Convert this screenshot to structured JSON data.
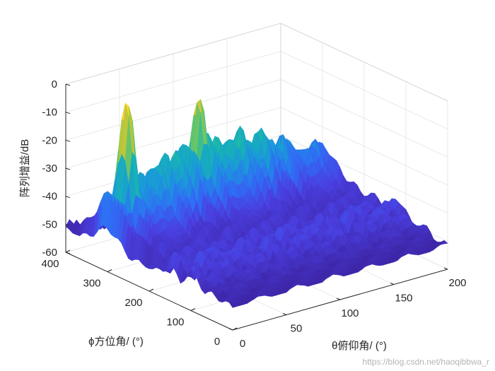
{
  "chart_data": {
    "type": "surface",
    "title": "",
    "xlabel": "θ俯仰角/ (°)",
    "ylabel": "ϕ方位角/ (°)",
    "zlabel": "阵列增益/dB",
    "x_ticks": [
      0,
      50,
      100,
      150,
      200
    ],
    "y_ticks": [
      0,
      100,
      200,
      300,
      400
    ],
    "z_ticks": [
      0,
      -10,
      -20,
      -30,
      -40,
      -50,
      -60
    ],
    "xlim": [
      0,
      200
    ],
    "ylim": [
      0,
      400
    ],
    "zlim": [
      -60,
      0
    ],
    "grid": true,
    "colormap": "parula",
    "colors": [
      "#3e26a8",
      "#4a3fe0",
      "#2f6ef5",
      "#1a9ad8",
      "#17b6b0",
      "#58c474",
      "#b4c63c",
      "#f4c833",
      "#f9fb15"
    ],
    "floor_db": -52,
    "peaks": [
      {
        "theta": 18,
        "phi": 300,
        "gain_db": 0
      },
      {
        "theta": 85,
        "phi": 300,
        "gain_db": -6
      },
      {
        "theta": 142,
        "phi": 300,
        "gain_db": -22
      }
    ]
  },
  "watermark": "https://blog.csdn.net/haoqibbwa_r"
}
